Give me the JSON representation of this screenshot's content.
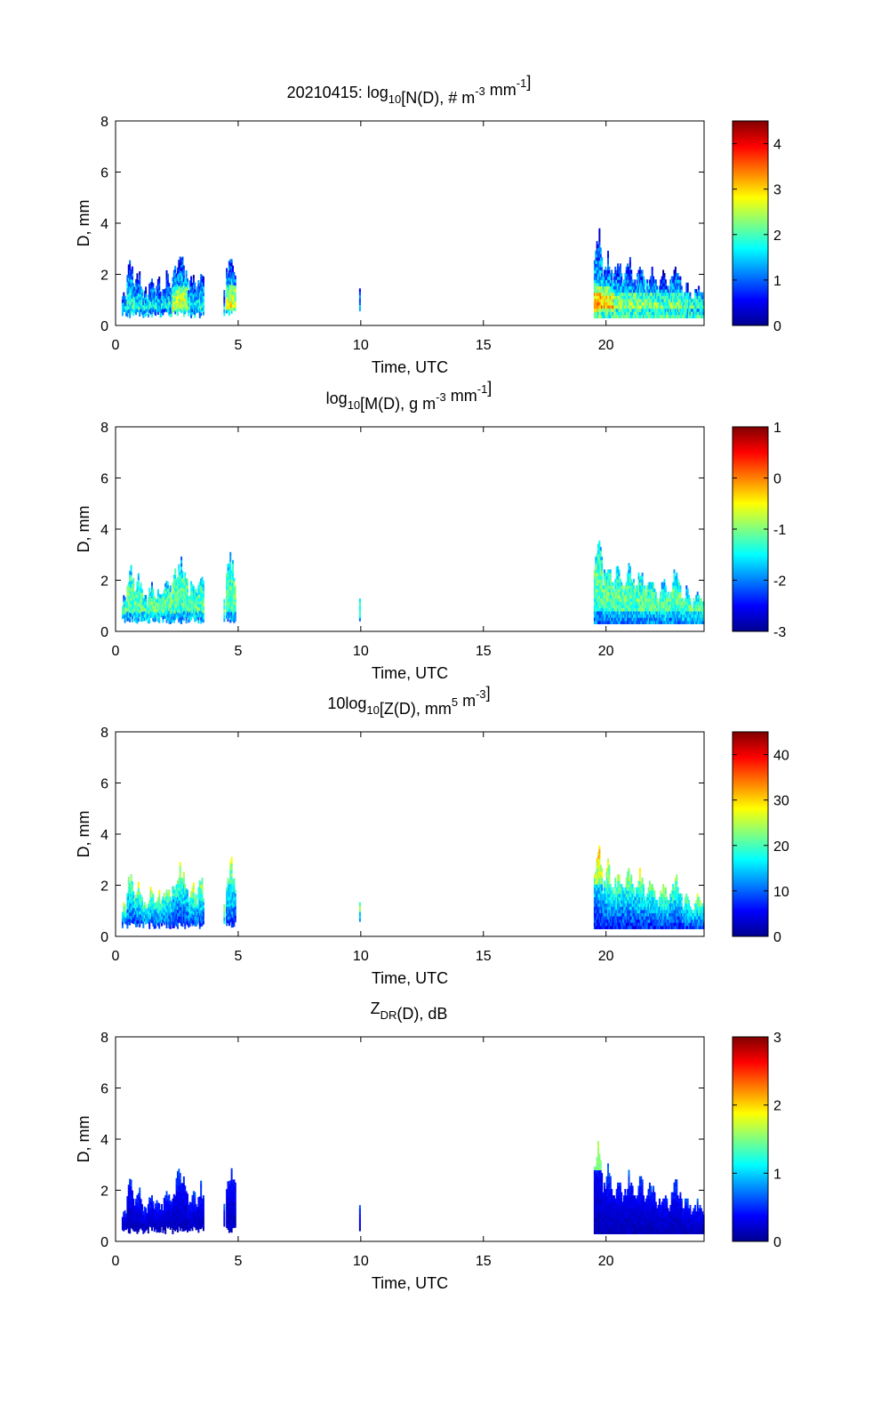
{
  "colormap": "jet",
  "colormap_stops": [
    "#00008f",
    "#0000ff",
    "#0080ff",
    "#00ffff",
    "#80ff80",
    "#ffff00",
    "#ff8000",
    "#ff0000",
    "#800000"
  ],
  "chart_data": [
    {
      "type": "heatmap",
      "title_parts": {
        "main": "20210415: log",
        "sub": "10",
        "rest": "[N(D), # m",
        "sup1": "-3",
        "rest2": " mm",
        "sup2": "-1",
        "end": "]"
      },
      "xlabel": "Time, UTC",
      "ylabel": "D, mm",
      "xlim": [
        0,
        24
      ],
      "ylim": [
        0,
        8
      ],
      "xticks": [
        0,
        5,
        10,
        15,
        20
      ],
      "yticks": [
        0,
        2,
        4,
        6,
        8
      ],
      "colorbar": {
        "range": [
          0,
          4.5
        ],
        "ticks": [
          0,
          1,
          2,
          3,
          4
        ]
      },
      "mode": "N"
    },
    {
      "type": "heatmap",
      "title_parts": {
        "main": "log",
        "sub": "10",
        "rest": "[M(D), g m",
        "sup1": "-3",
        "rest2": " mm",
        "sup2": "-1",
        "end": "]"
      },
      "xlabel": "Time, UTC",
      "ylabel": "D, mm",
      "xlim": [
        0,
        24
      ],
      "ylim": [
        0,
        8
      ],
      "xticks": [
        0,
        5,
        10,
        15,
        20
      ],
      "yticks": [
        0,
        2,
        4,
        6,
        8
      ],
      "colorbar": {
        "range": [
          -3,
          1
        ],
        "ticks": [
          -3,
          -2,
          -1,
          0,
          1
        ]
      },
      "mode": "M"
    },
    {
      "type": "heatmap",
      "title_parts": {
        "main": "10log",
        "sub": "10",
        "rest": "[Z(D),  mm",
        "sup1": "5",
        "rest2": " m",
        "sup2": "-3",
        "end": "]"
      },
      "xlabel": "Time, UTC",
      "ylabel": "D, mm",
      "xlim": [
        0,
        24
      ],
      "ylim": [
        0,
        8
      ],
      "xticks": [
        0,
        5,
        10,
        15,
        20
      ],
      "yticks": [
        0,
        2,
        4,
        6,
        8
      ],
      "colorbar": {
        "range": [
          0,
          45
        ],
        "ticks": [
          0,
          10,
          20,
          30,
          40
        ]
      },
      "mode": "Z"
    },
    {
      "type": "heatmap",
      "title_parts": {
        "main": "Z",
        "sub": "DR",
        "rest": "(D), dB",
        "sup1": "",
        "rest2": "",
        "sup2": "",
        "end": ""
      },
      "xlabel": "Time, UTC",
      "ylabel": "D, mm",
      "xlim": [
        0,
        24
      ],
      "ylim": [
        0,
        8
      ],
      "xticks": [
        0,
        5,
        10,
        15,
        20
      ],
      "yticks": [
        0,
        2,
        4,
        6,
        8
      ],
      "colorbar": {
        "range": [
          0,
          3
        ],
        "ticks": [
          0,
          1,
          2,
          3
        ]
      },
      "mode": "ZDR"
    }
  ],
  "rain_events": [
    {
      "start": 0.25,
      "end": 0.45,
      "dmax": 1.3
    },
    {
      "start": 0.45,
      "end": 0.75,
      "dmax": 2.5
    },
    {
      "start": 0.75,
      "end": 1.1,
      "dmax": 2.0
    },
    {
      "start": 1.1,
      "end": 1.3,
      "dmax": 1.4
    },
    {
      "start": 1.3,
      "end": 1.6,
      "dmax": 1.8
    },
    {
      "start": 1.6,
      "end": 1.9,
      "dmax": 1.7
    },
    {
      "start": 1.9,
      "end": 2.3,
      "dmax": 1.9
    },
    {
      "start": 2.3,
      "end": 2.95,
      "dmax": 2.7
    },
    {
      "start": 2.95,
      "end": 3.35,
      "dmax": 1.9
    },
    {
      "start": 3.35,
      "end": 3.6,
      "dmax": 2.2
    },
    {
      "start": 4.4,
      "end": 4.45,
      "dmax": 1.3
    },
    {
      "start": 4.5,
      "end": 4.9,
      "dmax": 2.9
    },
    {
      "start": 9.93,
      "end": 9.98,
      "dmax": 1.35
    },
    {
      "start": 19.5,
      "end": 19.85,
      "dmax": 3.6
    },
    {
      "start": 19.85,
      "end": 20.3,
      "dmax": 2.7
    },
    {
      "start": 20.3,
      "end": 20.7,
      "dmax": 2.5
    },
    {
      "start": 20.7,
      "end": 21.2,
      "dmax": 2.5
    },
    {
      "start": 21.2,
      "end": 21.6,
      "dmax": 2.4
    },
    {
      "start": 21.6,
      "end": 22.1,
      "dmax": 2.2
    },
    {
      "start": 22.1,
      "end": 22.6,
      "dmax": 1.9
    },
    {
      "start": 22.6,
      "end": 23.1,
      "dmax": 2.3
    },
    {
      "start": 23.1,
      "end": 23.5,
      "dmax": 1.6
    },
    {
      "start": 23.5,
      "end": 24.0,
      "dmax": 1.5
    }
  ]
}
